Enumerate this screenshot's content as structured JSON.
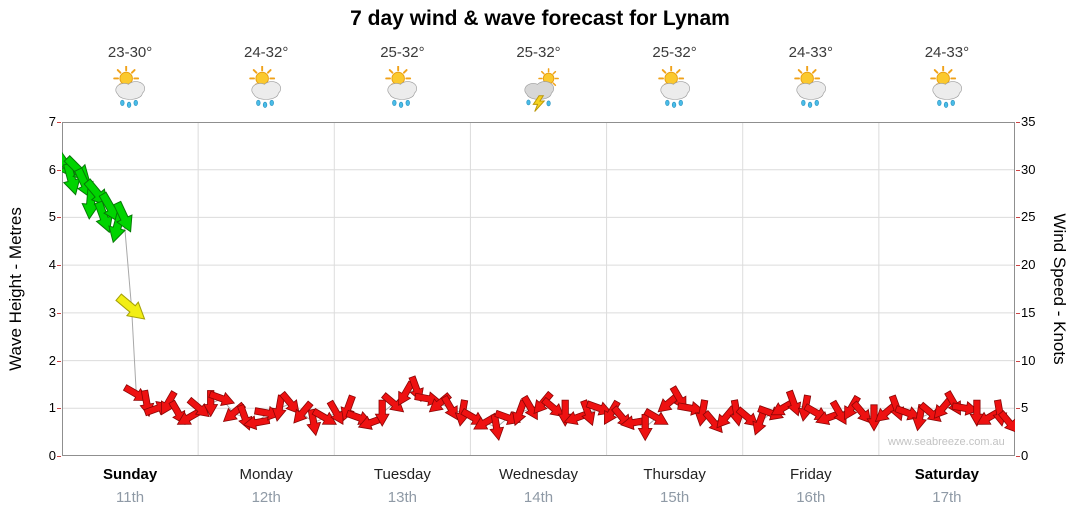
{
  "title": "7 day wind & wave forecast for Lynam",
  "watermark": "www.seabreeze.com.au",
  "days": [
    {
      "name": "Sunday",
      "date": "11th",
      "temp": "23-30°",
      "icon": "sun-cloud-rain",
      "bold": true
    },
    {
      "name": "Monday",
      "date": "12th",
      "temp": "24-32°",
      "icon": "sun-cloud-rain",
      "bold": false
    },
    {
      "name": "Tuesday",
      "date": "13th",
      "temp": "25-32°",
      "icon": "sun-cloud-rain",
      "bold": false
    },
    {
      "name": "Wednesday",
      "date": "14th",
      "temp": "25-32°",
      "icon": "storm",
      "bold": false
    },
    {
      "name": "Thursday",
      "date": "15th",
      "temp": "25-32°",
      "icon": "sun-cloud-rain",
      "bold": false
    },
    {
      "name": "Friday",
      "date": "16th",
      "temp": "24-33°",
      "icon": "sun-cloud-rain",
      "bold": false
    },
    {
      "name": "Saturday",
      "date": "17th",
      "temp": "24-33°",
      "icon": "sun-cloud-rain",
      "bold": true
    }
  ],
  "colors": {
    "grid": "#dcdcdc",
    "border": "#8f8f8f",
    "line": "#a8a8a8",
    "tick": "#cc4444",
    "arrow_green": "#00d400",
    "arrow_green_edge": "#067806",
    "arrow_yellow": "#f2ee14",
    "arrow_yellow_edge": "#a5a008",
    "arrow_red": "#ee1111",
    "arrow_red_edge": "#8a0505"
  },
  "chart_data": {
    "type": "scatter",
    "title": "7 day wind & wave forecast for Lynam",
    "grid": true,
    "legend": "none",
    "x_axis": {
      "label": "",
      "categories": [
        "Sunday 11th",
        "Monday 12th",
        "Tuesday 13th",
        "Wednesday 14th",
        "Thursday 15th",
        "Friday 16th",
        "Saturday 17th"
      ]
    },
    "y_left": {
      "label": "Wave Height - Metres",
      "range": [
        0,
        7
      ],
      "ticks": [
        0,
        1,
        2,
        3,
        4,
        5,
        6,
        7
      ]
    },
    "y_right": {
      "label": "Wind Speed - Knots",
      "range": [
        0,
        35
      ],
      "ticks": [
        0,
        5,
        10,
        15,
        20,
        25,
        30,
        35
      ]
    },
    "color_rule": "arrow color: green >=20kt, yellow 10-19kt, red <10kt",
    "series": [
      {
        "name": "Wind speed & direction arrows",
        "unit": "knots",
        "point_format": [
          "x_percent_of_week",
          "knots",
          "direction_deg"
        ],
        "points": [
          [
            0.4,
            30.5,
            55
          ],
          [
            1.0,
            29.0,
            75
          ],
          [
            1.7,
            30.0,
            45
          ],
          [
            2.4,
            28.5,
            65
          ],
          [
            3.0,
            26.5,
            95
          ],
          [
            3.7,
            27.5,
            50
          ],
          [
            4.4,
            25.0,
            70
          ],
          [
            5.1,
            26.0,
            60
          ],
          [
            5.8,
            24.0,
            105
          ],
          [
            6.5,
            25.0,
            65
          ],
          [
            7.3,
            15.5,
            40
          ],
          [
            7.8,
            6.5,
            30
          ],
          [
            8.9,
            5.5,
            80
          ],
          [
            10.0,
            5.0,
            -20
          ],
          [
            11.1,
            5.5,
            120
          ],
          [
            12.2,
            4.5,
            60
          ],
          [
            13.3,
            4.0,
            150
          ],
          [
            14.4,
            5.0,
            40
          ],
          [
            15.6,
            5.5,
            90
          ],
          [
            16.8,
            6.0,
            20
          ],
          [
            18.0,
            4.5,
            140
          ],
          [
            19.2,
            4.0,
            70
          ],
          [
            20.4,
            3.5,
            170
          ],
          [
            21.6,
            4.5,
            10
          ],
          [
            22.8,
            5.0,
            100
          ],
          [
            24.0,
            5.5,
            50
          ],
          [
            25.2,
            4.5,
            130
          ],
          [
            26.4,
            3.5,
            80
          ],
          [
            27.6,
            4.0,
            30
          ],
          [
            28.8,
            4.5,
            60
          ],
          [
            30.0,
            5.0,
            110
          ],
          [
            31.2,
            4.0,
            20
          ],
          [
            32.4,
            3.5,
            160
          ],
          [
            33.6,
            4.5,
            90
          ],
          [
            34.8,
            5.5,
            40
          ],
          [
            36.0,
            6.5,
            120
          ],
          [
            37.2,
            7.0,
            70
          ],
          [
            38.4,
            6.0,
            10
          ],
          [
            39.6,
            5.5,
            140
          ],
          [
            40.8,
            5.0,
            60
          ],
          [
            42.0,
            4.5,
            100
          ],
          [
            43.2,
            4.0,
            30
          ],
          [
            44.4,
            3.5,
            150
          ],
          [
            45.6,
            3.0,
            80
          ],
          [
            46.8,
            4.0,
            20
          ],
          [
            48.0,
            4.5,
            110
          ],
          [
            49.2,
            5.0,
            60
          ],
          [
            50.4,
            5.5,
            130
          ],
          [
            51.6,
            5.0,
            40
          ],
          [
            52.8,
            4.5,
            90
          ],
          [
            54.0,
            4.0,
            160
          ],
          [
            55.2,
            4.5,
            70
          ],
          [
            56.4,
            5.0,
            20
          ],
          [
            57.6,
            4.5,
            120
          ],
          [
            58.8,
            4.0,
            50
          ],
          [
            60.0,
            3.5,
            170
          ],
          [
            61.2,
            3.0,
            90
          ],
          [
            62.4,
            4.0,
            30
          ],
          [
            63.6,
            5.5,
            140
          ],
          [
            64.8,
            6.0,
            60
          ],
          [
            66.0,
            5.0,
            10
          ],
          [
            67.2,
            4.5,
            100
          ],
          [
            68.4,
            3.5,
            50
          ],
          [
            69.6,
            4.0,
            130
          ],
          [
            70.8,
            4.5,
            80
          ],
          [
            72.0,
            4.0,
            40
          ],
          [
            73.2,
            3.5,
            110
          ],
          [
            74.4,
            4.5,
            20
          ],
          [
            75.6,
            5.0,
            150
          ],
          [
            76.8,
            5.5,
            70
          ],
          [
            78.0,
            5.0,
            100
          ],
          [
            79.2,
            4.5,
            30
          ],
          [
            80.4,
            4.0,
            160
          ],
          [
            81.6,
            4.5,
            60
          ],
          [
            82.8,
            5.0,
            120
          ],
          [
            84.0,
            4.5,
            50
          ],
          [
            85.2,
            4.0,
            90
          ],
          [
            86.4,
            4.5,
            140
          ],
          [
            87.6,
            5.0,
            70
          ],
          [
            88.8,
            4.5,
            20
          ],
          [
            90.0,
            4.0,
            100
          ],
          [
            91.2,
            4.5,
            40
          ],
          [
            92.4,
            5.0,
            130
          ],
          [
            93.6,
            5.5,
            60
          ],
          [
            94.8,
            5.0,
            10
          ],
          [
            96.0,
            4.5,
            90
          ],
          [
            97.2,
            4.0,
            150
          ],
          [
            98.4,
            4.5,
            80
          ],
          [
            99.4,
            3.5,
            50
          ]
        ]
      }
    ]
  }
}
